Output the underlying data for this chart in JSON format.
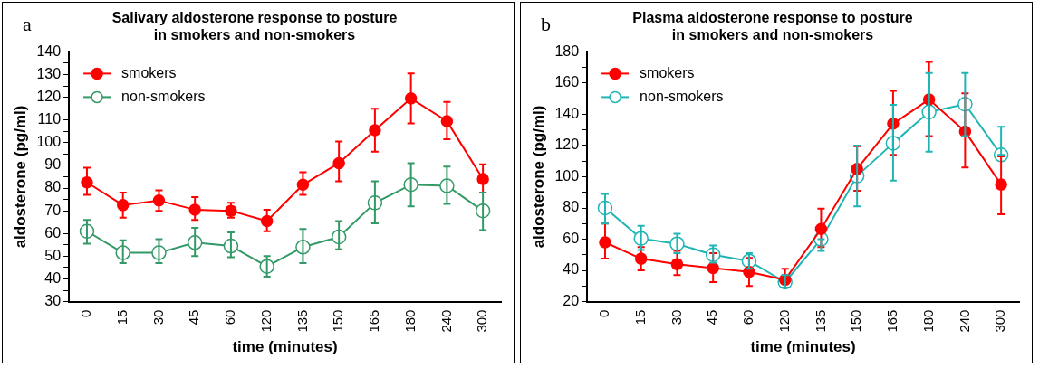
{
  "chart_data": [
    {
      "type": "line",
      "title": "Salivary aldosterone response to posture\nin smokers and non-smokers",
      "xlabel": "time (minutes)",
      "ylabel": "aldosterone (pg/ml)",
      "annotations": [
        "a"
      ],
      "categories": [
        "0",
        "15",
        "30",
        "45",
        "60",
        "120",
        "135",
        "150",
        "165",
        "180",
        "240",
        "300"
      ],
      "series": [
        {
          "name": "smokers",
          "color": "#ff0000",
          "values": [
            82.5,
            72.5,
            74.5,
            70.5,
            70,
            65.5,
            81.5,
            91,
            105.5,
            119.5,
            109.5,
            84
          ],
          "errors": [
            [
              77,
              89
            ],
            [
              67,
              78
            ],
            [
              70,
              79
            ],
            [
              66,
              76
            ],
            [
              67,
              73.5
            ],
            [
              61,
              70.5
            ],
            [
              77,
              87
            ],
            [
              83,
              100.5
            ],
            [
              96,
              115
            ],
            [
              108.5,
              130.5
            ],
            [
              101.5,
              118
            ],
            [
              78,
              90.5
            ]
          ]
        },
        {
          "name": "non-smokers",
          "color": "#339966",
          "values": [
            61,
            51.5,
            51.5,
            56,
            54.5,
            45.5,
            54,
            58.5,
            73.5,
            81.5,
            81,
            70
          ],
          "errors": [
            [
              55.5,
              66
            ],
            [
              47,
              57
            ],
            [
              47,
              57.5
            ],
            [
              50,
              62.5
            ],
            [
              49.5,
              60.5
            ],
            [
              41,
              50
            ],
            [
              47,
              62
            ],
            [
              53,
              65.5
            ],
            [
              64.5,
              83
            ],
            [
              72,
              91
            ],
            [
              73,
              89.5
            ],
            [
              61.5,
              78
            ]
          ]
        }
      ],
      "ylim": [
        30,
        140
      ],
      "yticks": [
        30,
        {
          "value": 35,
          "label": null
        },
        40,
        {
          "value": 45,
          "label": null
        },
        50,
        {
          "value": 55,
          "label": null
        },
        60,
        {
          "value": 65,
          "label": null
        },
        70,
        {
          "value": 75,
          "label": null
        },
        80,
        {
          "value": 85,
          "label": null
        },
        90,
        {
          "value": 95,
          "label": null
        },
        100,
        {
          "value": 105,
          "label": null
        },
        110,
        {
          "value": 115,
          "label": null
        },
        120,
        {
          "value": 125,
          "label": null
        },
        130,
        {
          "value": 135,
          "label": null
        },
        140
      ],
      "legend": "top left",
      "marker": "circle",
      "grid": false
    },
    {
      "type": "line",
      "title": "Plasma aldosterone response to posture\nin smokers and non-smokers",
      "xlabel": "time (minutes)",
      "ylabel": "aldosterone (pg/ml)",
      "annotations": [
        "b"
      ],
      "categories": [
        "0",
        "15",
        "30",
        "45",
        "60",
        "120",
        "135",
        "150",
        "165",
        "180",
        "240",
        "300"
      ],
      "series": [
        {
          "name": "smokers",
          "color": "#ff0000",
          "values": [
            58,
            47.5,
            44,
            41.5,
            39,
            34,
            66.5,
            105,
            134,
            149.5,
            129,
            95
          ],
          "errors": [
            [
              47.5,
              70
            ],
            [
              40,
              55
            ],
            [
              37,
              52.5
            ],
            [
              32.5,
              51
            ],
            [
              30,
              48
            ],
            [
              29,
              41
            ],
            [
              55,
              79.5
            ],
            [
              91,
              119.5
            ],
            [
              114,
              155
            ],
            [
              126,
              173.5
            ],
            [
              106,
              153.5
            ],
            [
              76,
              113
            ]
          ]
        },
        {
          "name": "non-smokers",
          "color": "#1fb5b5",
          "values": [
            80,
            60.5,
            57,
            50,
            46,
            32.5,
            60,
            100.5,
            121.5,
            141.5,
            146.5,
            114
          ],
          "errors": [
            [
              70,
              89
            ],
            [
              53,
              68.5
            ],
            [
              51,
              63.5
            ],
            [
              45,
              56
            ],
            [
              41,
              51
            ],
            [
              29,
              37
            ],
            [
              52.5,
              60
            ],
            [
              81,
              120
            ],
            [
              97.5,
              146
            ],
            [
              116,
              166.5
            ],
            [
              126,
              166.5
            ],
            [
              114,
              132
            ]
          ]
        }
      ],
      "ylim": [
        20,
        180
      ],
      "yticks": [
        20,
        {
          "value": 30,
          "label": null
        },
        40,
        {
          "value": 50,
          "label": null
        },
        60,
        {
          "value": 70,
          "label": null
        },
        80,
        {
          "value": 90,
          "label": null
        },
        100,
        {
          "value": 110,
          "label": null
        },
        120,
        {
          "value": 130,
          "label": null
        },
        140,
        {
          "value": 150,
          "label": null
        },
        160,
        {
          "value": 170,
          "label": null
        },
        180
      ],
      "legend": "top left",
      "marker": "circle",
      "grid": false
    }
  ]
}
